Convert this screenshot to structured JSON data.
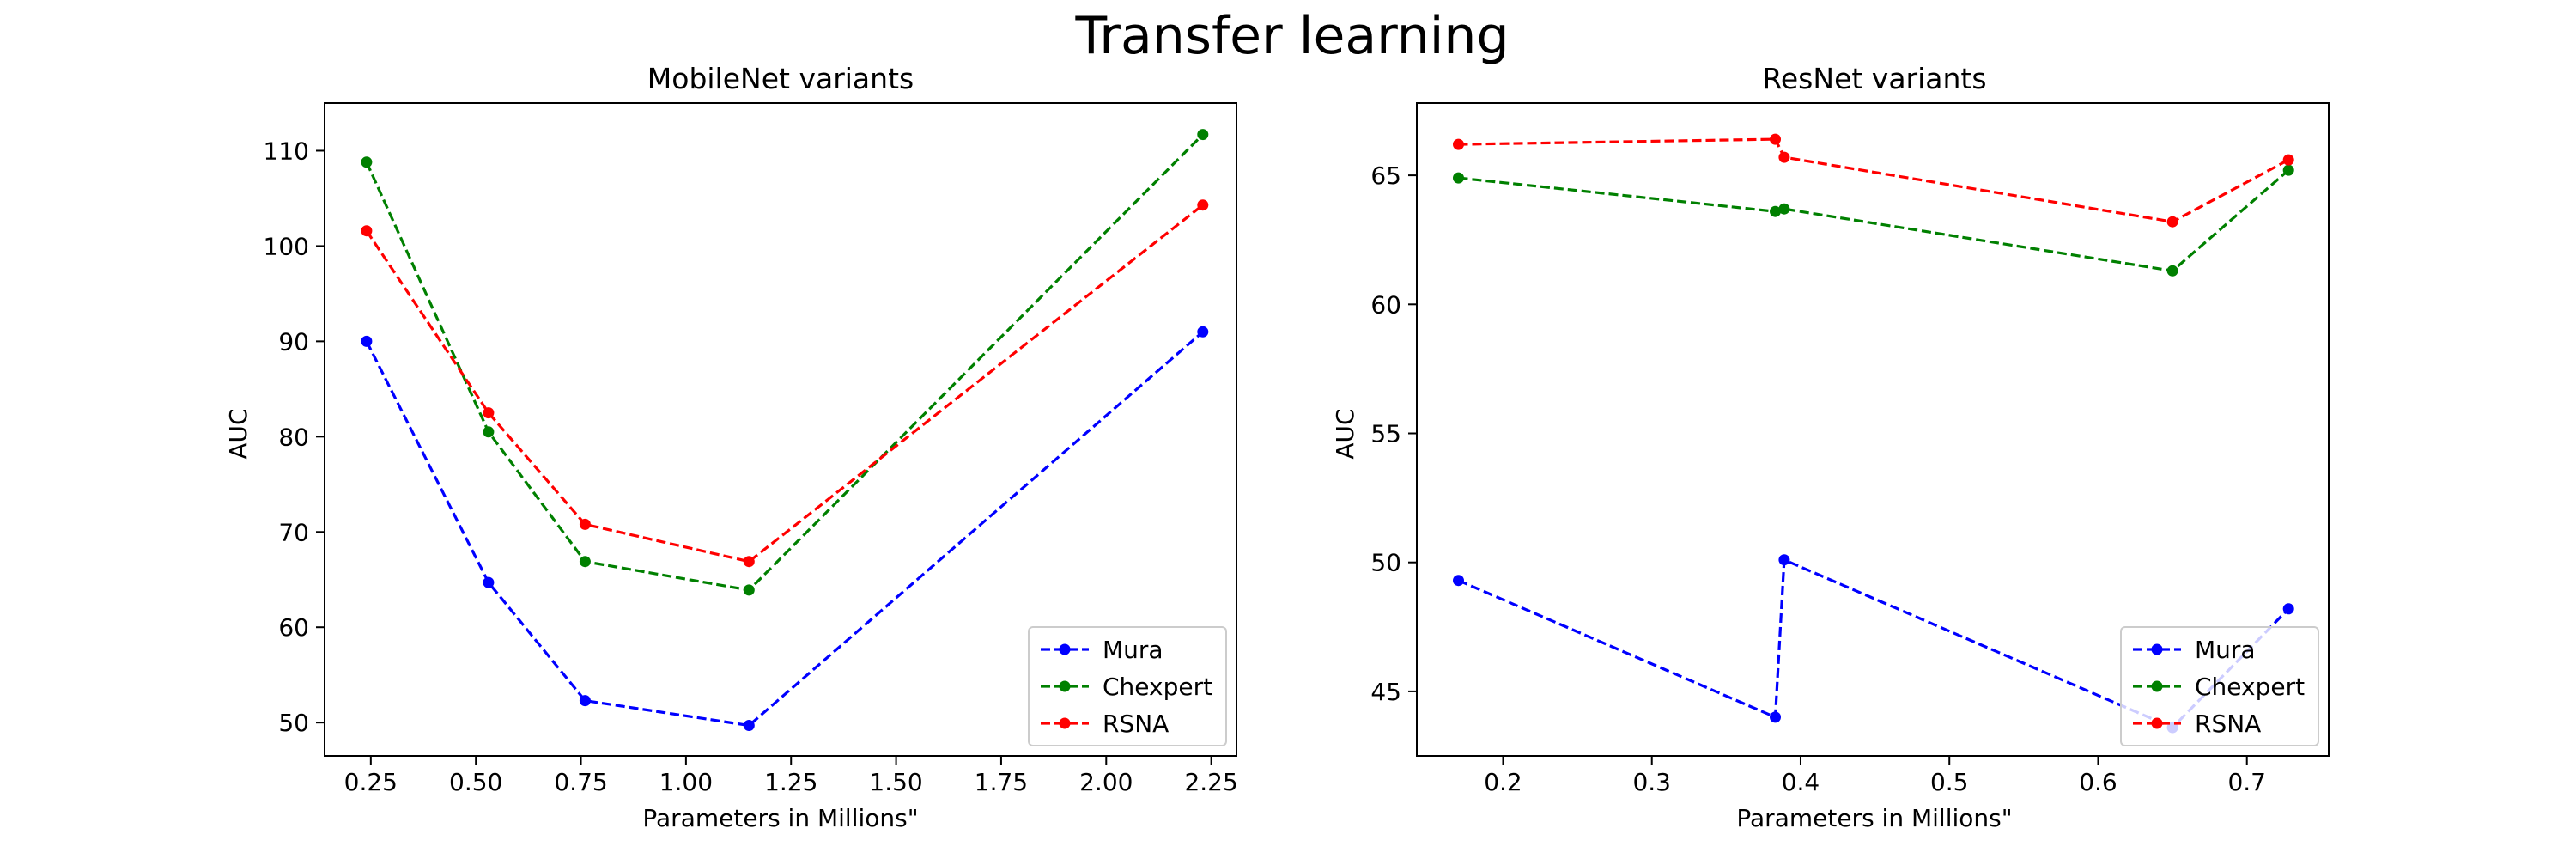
{
  "figure": {
    "title": "Transfer learning"
  },
  "chart_data": [
    {
      "type": "line",
      "title": "MobileNet variants",
      "xlabel": "Parameters in Millions\"",
      "ylabel": "AUC",
      "xlim": [
        0.14,
        2.31
      ],
      "ylim": [
        46.5,
        115
      ],
      "xticks": [
        0.25,
        0.5,
        0.75,
        1.0,
        1.25,
        1.5,
        1.75,
        2.0,
        2.25
      ],
      "xtick_labels": [
        "0.25",
        "0.50",
        "0.75",
        "1.00",
        "1.25",
        "1.50",
        "1.75",
        "2.00",
        "2.25"
      ],
      "yticks": [
        50,
        60,
        70,
        80,
        90,
        100,
        110
      ],
      "ytick_labels": [
        "50",
        "60",
        "70",
        "80",
        "90",
        "100",
        "110"
      ],
      "grid": false,
      "legend_position": "lower-right",
      "x": [
        0.24,
        0.53,
        0.76,
        1.15,
        2.23
      ],
      "series": [
        {
          "name": "Mura",
          "color": "#0000ff",
          "values": [
            90.0,
            64.7,
            52.3,
            49.7,
            91.0
          ]
        },
        {
          "name": "Chexpert",
          "color": "#008000",
          "values": [
            108.8,
            80.5,
            66.9,
            63.9,
            111.7
          ]
        },
        {
          "name": "RSNA",
          "color": "#ff0000",
          "values": [
            101.6,
            82.5,
            70.8,
            66.9,
            104.3
          ]
        }
      ]
    },
    {
      "type": "line",
      "title": "ResNet variants",
      "xlabel": "Parameters in Millions\"",
      "ylabel": "AUC",
      "xlim": [
        0.142,
        0.755
      ],
      "ylim": [
        42.5,
        67.8
      ],
      "xticks": [
        0.2,
        0.3,
        0.4,
        0.5,
        0.6,
        0.7
      ],
      "xtick_labels": [
        "0.2",
        "0.3",
        "0.4",
        "0.5",
        "0.6",
        "0.7"
      ],
      "yticks": [
        45,
        50,
        55,
        60,
        65
      ],
      "ytick_labels": [
        "45",
        "50",
        "55",
        "60",
        "65"
      ],
      "grid": false,
      "legend_position": "lower-right",
      "x": [
        0.17,
        0.383,
        0.389,
        0.65,
        0.728
      ],
      "series": [
        {
          "name": "Mura",
          "color": "#0000ff",
          "values": [
            49.3,
            44.0,
            50.1,
            43.6,
            48.2
          ]
        },
        {
          "name": "Chexpert",
          "color": "#008000",
          "values": [
            64.9,
            63.6,
            63.7,
            61.3,
            65.2
          ]
        },
        {
          "name": "RSNA",
          "color": "#ff0000",
          "values": [
            66.2,
            66.4,
            65.7,
            63.2,
            65.6
          ]
        }
      ]
    }
  ]
}
